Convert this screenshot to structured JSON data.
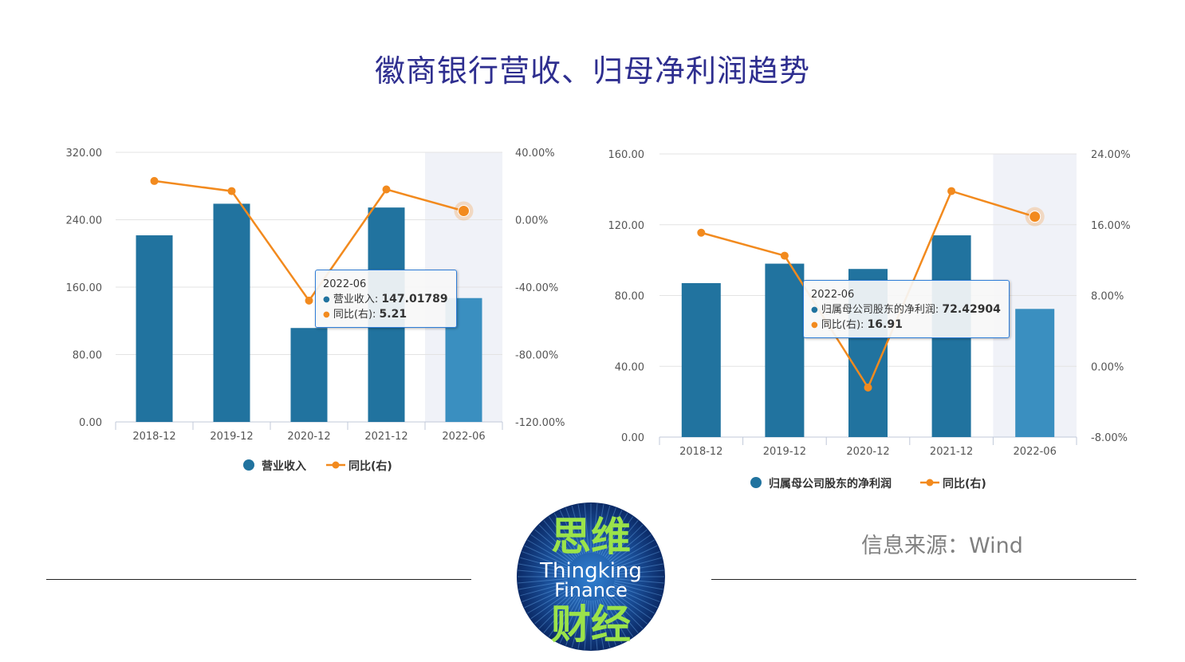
{
  "title": "徽商银行营收、归母净利润趋势",
  "source": "信息来源：Wind",
  "logo": {
    "cn_top": "思维",
    "en_line1": "Thingking",
    "en_line2": "Finance",
    "cn_bottom": "财经"
  },
  "colors": {
    "bar": "#21739f",
    "bar_highlight": "#3a8fc0",
    "line": "#f28a1e",
    "title": "#2e2e8f"
  },
  "chart_data": [
    {
      "type": "bar",
      "categories": [
        "2018-12",
        "2019-12",
        "2020-12",
        "2021-12",
        "2022-06"
      ],
      "series": [
        {
          "name": "营业收入",
          "type": "bar",
          "axis": "left",
          "values": [
            221.5,
            259.0,
            111.5,
            254.5,
            147.01789
          ]
        },
        {
          "name": "同比(右)",
          "type": "line",
          "axis": "right",
          "values": [
            23.0,
            17.0,
            -48.0,
            18.0,
            5.21
          ]
        }
      ],
      "left_axis": {
        "ylim": [
          0,
          320
        ],
        "ticks": [
          "0.00",
          "80.00",
          "160.00",
          "240.00",
          "320.00"
        ]
      },
      "right_axis": {
        "ylim": [
          -120,
          40
        ],
        "ticks": [
          "-120.00%",
          "-80.00%",
          "-40.00%",
          "0.00%",
          "40.00%"
        ]
      },
      "highlight_index": 4,
      "tooltip": {
        "category": "2022-06",
        "rows": [
          {
            "label": "营业收入",
            "value": "147.01789",
            "color": "#21739f"
          },
          {
            "label": "同比(右)",
            "value": "5.21",
            "color": "#f28a1e"
          }
        ]
      }
    },
    {
      "type": "bar",
      "categories": [
        "2018-12",
        "2019-12",
        "2020-12",
        "2021-12",
        "2022-06"
      ],
      "series": [
        {
          "name": "归属母公司股东的净利润",
          "type": "bar",
          "axis": "left",
          "values": [
            87.0,
            98.0,
            95.0,
            114.0,
            72.42904
          ]
        },
        {
          "name": "同比(右)",
          "type": "line",
          "axis": "right",
          "values": [
            15.1,
            12.5,
            -2.4,
            19.8,
            16.91
          ]
        }
      ],
      "left_axis": {
        "ylim": [
          0,
          160
        ],
        "ticks": [
          "0.00",
          "40.00",
          "80.00",
          "120.00",
          "160.00"
        ]
      },
      "right_axis": {
        "ylim": [
          -8,
          24
        ],
        "ticks": [
          "-8.00%",
          "0.00%",
          "8.00%",
          "16.00%",
          "24.00%"
        ]
      },
      "highlight_index": 4,
      "tooltip": {
        "category": "2022-06",
        "rows": [
          {
            "label": "归属母公司股东的净利润",
            "value": "72.42904",
            "color": "#21739f"
          },
          {
            "label": "同比(右)",
            "value": "16.91",
            "color": "#f28a1e"
          }
        ]
      }
    }
  ]
}
